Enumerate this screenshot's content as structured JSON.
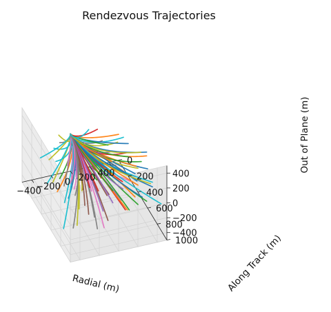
{
  "chart_data": {
    "type": "line3d",
    "title": "Rendezvous Trajectories",
    "xlabel": "Radial (m)",
    "ylabel": "Along Track (m)",
    "zlabel": "Out of Plane (m)",
    "xlim": [
      -500,
      500
    ],
    "ylim": [
      0,
      1000
    ],
    "zlim": [
      -500,
      500
    ],
    "xticks": [
      "−400",
      "−200",
      "0",
      "200",
      "400"
    ],
    "xtick_values": [
      -400,
      -200,
      0,
      200,
      400
    ],
    "yticks": [
      "0",
      "200",
      "400",
      "600",
      "800",
      "1000"
    ],
    "ytick_values": [
      0,
      200,
      400,
      600,
      800,
      1000
    ],
    "zticks": [
      "−400",
      "−200",
      "0",
      "200",
      "400"
    ],
    "ztick_values": [
      -400,
      -200,
      0,
      200,
      400
    ],
    "grid": true,
    "target_point": [
      0,
      0,
      0
    ],
    "colors": [
      "#1f77b4",
      "#ff7f0e",
      "#2ca02c",
      "#d62728",
      "#9467bd",
      "#8c564b",
      "#e377c2",
      "#7f7f7f",
      "#bcbd22",
      "#17becf"
    ],
    "trajectory_endpoints": [
      [
        -380,
        900,
        480
      ],
      [
        -300,
        820,
        430
      ],
      [
        -200,
        950,
        460
      ],
      [
        -120,
        780,
        380
      ],
      [
        -40,
        900,
        420
      ],
      [
        60,
        820,
        440
      ],
      [
        150,
        960,
        350
      ],
      [
        240,
        880,
        300
      ],
      [
        320,
        760,
        260
      ],
      [
        400,
        900,
        200
      ],
      [
        450,
        700,
        150
      ],
      [
        380,
        600,
        100
      ],
      [
        300,
        980,
        60
      ],
      [
        200,
        680,
        30
      ],
      [
        110,
        840,
        -20
      ],
      [
        20,
        720,
        -60
      ],
      [
        -80,
        600,
        -100
      ],
      [
        -180,
        860,
        -140
      ],
      [
        -260,
        700,
        -180
      ],
      [
        -340,
        560,
        -220
      ],
      [
        -420,
        800,
        120
      ],
      [
        -460,
        650,
        60
      ],
      [
        -350,
        480,
        20
      ],
      [
        -250,
        520,
        -40
      ],
      [
        -150,
        420,
        -80
      ],
      [
        -60,
        380,
        180
      ],
      [
        30,
        460,
        240
      ],
      [
        130,
        400,
        300
      ],
      [
        230,
        520,
        380
      ],
      [
        330,
        440,
        330
      ],
      [
        420,
        500,
        -120
      ],
      [
        360,
        380,
        -200
      ],
      [
        270,
        330,
        -260
      ],
      [
        170,
        300,
        -320
      ],
      [
        80,
        360,
        -380
      ],
      [
        -20,
        300,
        -420
      ],
      [
        -120,
        260,
        -350
      ],
      [
        -220,
        310,
        -300
      ],
      [
        -320,
        280,
        -250
      ],
      [
        -410,
        340,
        -180
      ],
      [
        440,
        820,
        40
      ],
      [
        350,
        700,
        -40
      ],
      [
        260,
        880,
        -80
      ],
      [
        160,
        600,
        120
      ],
      [
        70,
        950,
        260
      ],
      [
        -30,
        860,
        120
      ],
      [
        -130,
        700,
        250
      ],
      [
        -230,
        620,
        330
      ],
      [
        -330,
        900,
        300
      ],
      [
        -430,
        560,
        360
      ],
      [
        480,
        620,
        280
      ],
      [
        410,
        760,
        400
      ],
      [
        310,
        850,
        450
      ],
      [
        210,
        740,
        480
      ],
      [
        100,
        640,
        420
      ],
      [
        0,
        560,
        360
      ],
      [
        -100,
        500,
        440
      ],
      [
        -200,
        420,
        380
      ],
      [
        -300,
        360,
        460
      ],
      [
        -400,
        460,
        420
      ],
      [
        450,
        300,
        60
      ],
      [
        380,
        240,
        140
      ],
      [
        290,
        200,
        -20
      ],
      [
        190,
        180,
        200
      ],
      [
        90,
        220,
        -160
      ],
      [
        -10,
        180,
        80
      ],
      [
        -110,
        160,
        -220
      ],
      [
        -210,
        200,
        160
      ],
      [
        -310,
        180,
        -60
      ],
      [
        -420,
        220,
        40
      ],
      [
        470,
        440,
        -300
      ],
      [
        390,
        560,
        -360
      ],
      [
        290,
        640,
        -420
      ],
      [
        190,
        760,
        -260
      ],
      [
        90,
        700,
        -200
      ],
      [
        -10,
        800,
        -300
      ],
      [
        -110,
        920,
        -240
      ],
      [
        -210,
        980,
        -160
      ],
      [
        -310,
        760,
        -320
      ],
      [
        -410,
        680,
        -420
      ],
      [
        250,
        990,
        140
      ],
      [
        150,
        880,
        -120
      ],
      [
        50,
        780,
        60
      ],
      [
        -50,
        680,
        -20
      ],
      [
        -150,
        980,
        60
      ],
      [
        -250,
        880,
        -60
      ],
      [
        -350,
        780,
        200
      ],
      [
        -450,
        960,
        -100
      ],
      [
        350,
        960,
        260
      ],
      [
        450,
        980,
        -20
      ],
      [
        120,
        520,
        60
      ],
      [
        220,
        420,
        20
      ],
      [
        320,
        560,
        200
      ],
      [
        -20,
        440,
        -240
      ],
      [
        -120,
        580,
        20
      ],
      [
        -220,
        740,
        -100
      ],
      [
        -320,
        640,
        120
      ],
      [
        -400,
        900,
        260
      ],
      [
        410,
        640,
        320
      ],
      [
        60,
        260,
        320
      ]
    ]
  }
}
